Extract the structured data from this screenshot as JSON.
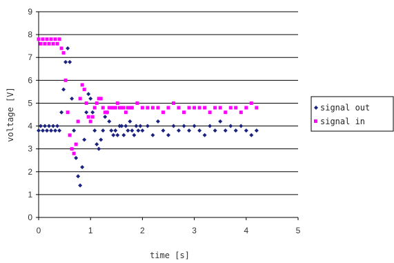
{
  "chart_data": {
    "type": "scatter",
    "title": "",
    "xlabel": "time [s]",
    "ylabel": "voltage [V]",
    "xlim": [
      0,
      5
    ],
    "ylim": [
      0,
      9
    ],
    "x_ticks": [
      "0",
      "1",
      "2",
      "3",
      "4",
      "5"
    ],
    "y_ticks": [
      "0",
      "1",
      "2",
      "3",
      "4",
      "5",
      "6",
      "7",
      "8",
      "9"
    ],
    "grid": "horizontal",
    "legend_position": "right",
    "series": [
      {
        "name": "signal out",
        "color": "#1a237e",
        "marker": "diamond",
        "points": [
          [
            0.0,
            3.8
          ],
          [
            0.04,
            4.0
          ],
          [
            0.08,
            3.8
          ],
          [
            0.12,
            4.0
          ],
          [
            0.16,
            3.8
          ],
          [
            0.2,
            4.0
          ],
          [
            0.24,
            3.8
          ],
          [
            0.28,
            4.0
          ],
          [
            0.32,
            3.8
          ],
          [
            0.36,
            4.0
          ],
          [
            0.4,
            3.8
          ],
          [
            0.44,
            4.6
          ],
          [
            0.48,
            5.6
          ],
          [
            0.52,
            6.8
          ],
          [
            0.56,
            7.4
          ],
          [
            0.6,
            6.8
          ],
          [
            0.64,
            5.2
          ],
          [
            0.68,
            3.8
          ],
          [
            0.72,
            2.6
          ],
          [
            0.76,
            1.8
          ],
          [
            0.8,
            1.4
          ],
          [
            0.84,
            2.2
          ],
          [
            0.88,
            3.4
          ],
          [
            0.92,
            4.6
          ],
          [
            0.96,
            5.4
          ],
          [
            1.0,
            5.2
          ],
          [
            1.04,
            4.6
          ],
          [
            1.08,
            3.8
          ],
          [
            1.12,
            3.2
          ],
          [
            1.16,
            3.0
          ],
          [
            1.2,
            3.4
          ],
          [
            1.24,
            3.8
          ],
          [
            1.28,
            4.4
          ],
          [
            1.32,
            4.6
          ],
          [
            1.36,
            4.2
          ],
          [
            1.4,
            3.8
          ],
          [
            1.44,
            3.6
          ],
          [
            1.48,
            3.8
          ],
          [
            1.52,
            3.6
          ],
          [
            1.56,
            4.0
          ],
          [
            1.6,
            4.0
          ],
          [
            1.64,
            3.6
          ],
          [
            1.68,
            4.0
          ],
          [
            1.72,
            3.8
          ],
          [
            1.76,
            4.2
          ],
          [
            1.8,
            3.8
          ],
          [
            1.84,
            3.6
          ],
          [
            1.88,
            4.0
          ],
          [
            1.92,
            3.8
          ],
          [
            1.96,
            4.0
          ],
          [
            2.0,
            3.8
          ],
          [
            2.1,
            4.0
          ],
          [
            2.2,
            3.6
          ],
          [
            2.3,
            4.2
          ],
          [
            2.4,
            3.8
          ],
          [
            2.5,
            3.6
          ],
          [
            2.6,
            4.0
          ],
          [
            2.7,
            3.8
          ],
          [
            2.8,
            4.0
          ],
          [
            2.9,
            3.8
          ],
          [
            3.0,
            4.0
          ],
          [
            3.1,
            3.8
          ],
          [
            3.2,
            3.6
          ],
          [
            3.3,
            4.0
          ],
          [
            3.4,
            3.8
          ],
          [
            3.5,
            4.2
          ],
          [
            3.6,
            3.8
          ],
          [
            3.7,
            4.0
          ],
          [
            3.8,
            3.8
          ],
          [
            3.9,
            4.0
          ],
          [
            4.0,
            3.8
          ],
          [
            4.1,
            3.6
          ],
          [
            4.2,
            3.8
          ]
        ]
      },
      {
        "name": "signal in",
        "color": "#ff00ff",
        "marker": "square",
        "points": [
          [
            0.0,
            7.8
          ],
          [
            0.04,
            7.6
          ],
          [
            0.08,
            7.8
          ],
          [
            0.12,
            7.6
          ],
          [
            0.16,
            7.8
          ],
          [
            0.2,
            7.6
          ],
          [
            0.24,
            7.8
          ],
          [
            0.28,
            7.6
          ],
          [
            0.32,
            7.8
          ],
          [
            0.36,
            7.6
          ],
          [
            0.4,
            7.8
          ],
          [
            0.44,
            7.4
          ],
          [
            0.48,
            7.2
          ],
          [
            0.52,
            6.0
          ],
          [
            0.56,
            4.6
          ],
          [
            0.6,
            3.6
          ],
          [
            0.64,
            3.0
          ],
          [
            0.68,
            2.8
          ],
          [
            0.72,
            3.2
          ],
          [
            0.76,
            4.2
          ],
          [
            0.8,
            5.2
          ],
          [
            0.84,
            5.8
          ],
          [
            0.88,
            5.6
          ],
          [
            0.92,
            5.0
          ],
          [
            0.96,
            4.4
          ],
          [
            1.0,
            4.2
          ],
          [
            1.04,
            4.4
          ],
          [
            1.08,
            4.8
          ],
          [
            1.12,
            5.0
          ],
          [
            1.16,
            5.2
          ],
          [
            1.2,
            5.2
          ],
          [
            1.24,
            4.8
          ],
          [
            1.28,
            4.6
          ],
          [
            1.32,
            4.6
          ],
          [
            1.36,
            4.8
          ],
          [
            1.4,
            4.8
          ],
          [
            1.44,
            4.8
          ],
          [
            1.48,
            4.8
          ],
          [
            1.52,
            5.0
          ],
          [
            1.56,
            4.8
          ],
          [
            1.6,
            4.8
          ],
          [
            1.64,
            4.8
          ],
          [
            1.68,
            4.6
          ],
          [
            1.72,
            4.8
          ],
          [
            1.76,
            4.8
          ],
          [
            1.8,
            4.8
          ],
          [
            1.9,
            5.0
          ],
          [
            2.0,
            4.8
          ],
          [
            2.1,
            4.8
          ],
          [
            2.2,
            4.8
          ],
          [
            2.3,
            4.8
          ],
          [
            2.4,
            4.6
          ],
          [
            2.5,
            4.8
          ],
          [
            2.6,
            5.0
          ],
          [
            2.7,
            4.8
          ],
          [
            2.8,
            4.6
          ],
          [
            2.9,
            4.8
          ],
          [
            3.0,
            4.8
          ],
          [
            3.1,
            4.8
          ],
          [
            3.2,
            4.8
          ],
          [
            3.3,
            4.6
          ],
          [
            3.4,
            4.8
          ],
          [
            3.5,
            4.8
          ],
          [
            3.6,
            4.6
          ],
          [
            3.7,
            4.8
          ],
          [
            3.8,
            4.8
          ],
          [
            3.9,
            4.6
          ],
          [
            4.0,
            4.8
          ],
          [
            4.1,
            5.0
          ],
          [
            4.2,
            4.8
          ]
        ]
      }
    ]
  }
}
